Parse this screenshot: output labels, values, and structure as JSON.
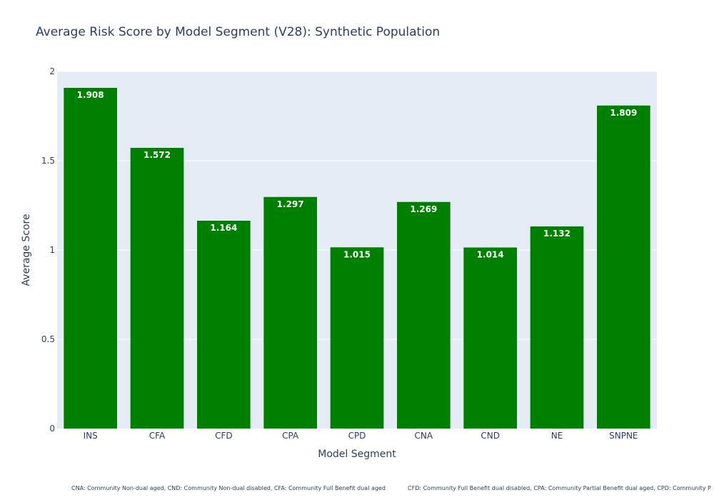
{
  "chart_data": {
    "type": "bar",
    "title": "Average Risk Score by Model Segment (V28): Synthetic Population",
    "xlabel": "Model Segment",
    "ylabel": "Average Score",
    "categories": [
      "INS",
      "CFA",
      "CFD",
      "CPA",
      "CPD",
      "CNA",
      "CND",
      "NE",
      "SNPNE"
    ],
    "values": [
      1.908,
      1.572,
      1.164,
      1.297,
      1.015,
      1.269,
      1.014,
      1.132,
      1.809
    ],
    "data_labels": [
      "1.908",
      "1.572",
      "1.164",
      "1.297",
      "1.015",
      "1.269",
      "1.014",
      "1.132",
      "1.809"
    ],
    "ylim": [
      0,
      2
    ],
    "yticks": [
      0,
      0.5,
      1,
      1.5,
      2
    ],
    "ytick_labels": [
      "0",
      "0.5",
      "1",
      "1.5",
      "2"
    ],
    "grid": true,
    "bar_color": "#008000",
    "plot_background": "#e5ecf6",
    "footnotes": [
      "CNA: Community Non-dual aged, CND: Community Non-dual disabled, CFA: Community Full Benefit dual aged",
      "CFD: Community Full Benefit dual disabled, CPA: Community Partial Benefit dual aged, CPD: Community P"
    ]
  }
}
